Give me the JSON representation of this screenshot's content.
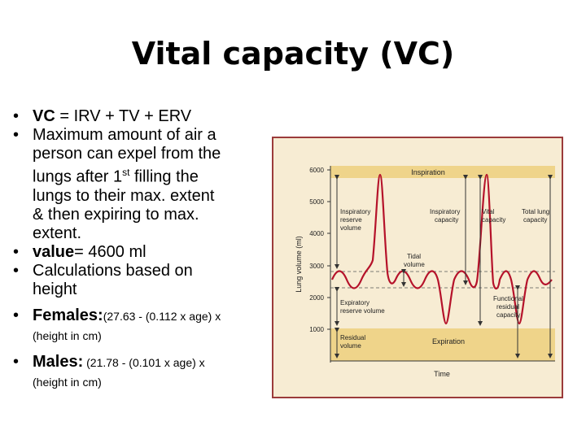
{
  "slide": {
    "title": "Vital capacity (VC)"
  },
  "bullets": {
    "b1": {
      "bold": "VC",
      "text": " = IRV + TV + ERV"
    },
    "b2": {
      "line1": "Maximum amount of air a",
      "line2": "person can expel from the",
      "line3a": "lungs after 1",
      "sup": "st",
      "line3b": " filling the",
      "line4": "lungs to their max. extent",
      "line5": "& then expiring to max.",
      "line6": "extent."
    },
    "b3": {
      "bold": "value",
      "text": "= 4600 ml"
    },
    "b4": {
      "line1": "Calculations based on",
      "line2": "height"
    },
    "b5": {
      "bold": "Females:",
      "formula": "(27.63 - (0.112 x age) x",
      "line2": "(height in cm)"
    },
    "b6": {
      "bold": "Males:",
      "formula": " (21.78 - (0.101 x age) x",
      "line2": "(height in cm)"
    }
  },
  "diagram": {
    "ylabel": "Lung volume (ml)",
    "xlabel": "Time",
    "ticks": [
      "6000",
      "5000",
      "4000",
      "3000",
      "2000",
      "1000"
    ],
    "labels": {
      "inspiration": "Inspiration",
      "expiration": "Expiration",
      "irv1": "Inspiratory",
      "irv2": "reserve",
      "irv3": "volume",
      "ic1": "Inspiratory",
      "ic2": "capacity",
      "vc1": "Vital",
      "vc2": "capacity",
      "tlc1": "Total lung",
      "tlc2": "capacity",
      "tv1": "Tidal",
      "tv2": "volume",
      "erv1": "Expiratory",
      "erv2": "reserve volume",
      "frc1": "Functional",
      "frc2": "residual",
      "frc3": "capacity",
      "rv1": "Residual",
      "rv2": "volume"
    },
    "colors": {
      "trace": "#b5122a",
      "band": "#efd48a",
      "frame": "#9b3b3b",
      "arrow": "#333333"
    }
  }
}
